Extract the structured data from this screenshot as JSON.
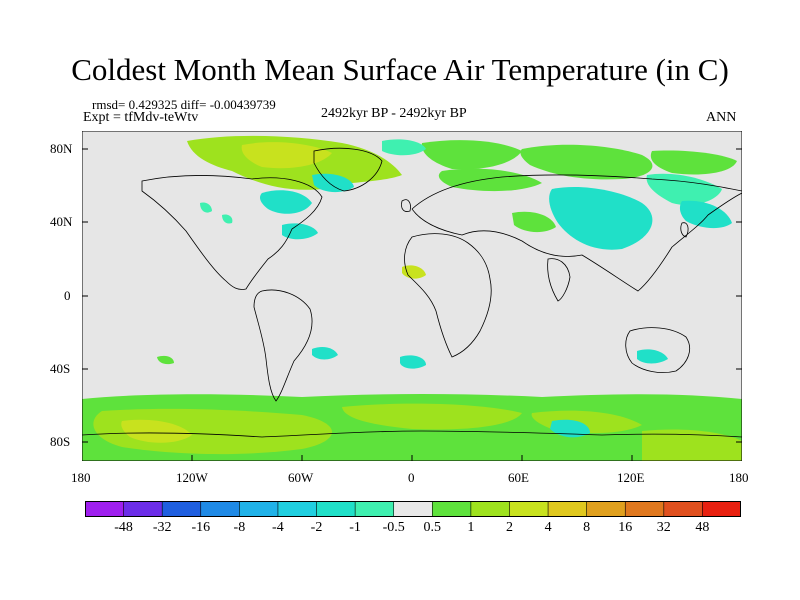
{
  "title": "Coldest Month Mean Surface Air Temperature (in C)",
  "stats": "rmsd= 0.429325 diff= -0.00439739",
  "expt": "Expt = tfMdv-teWtv",
  "period": "2492kyr BP - 2492kyr BP",
  "season": "ANN",
  "y_ticks": [
    "80N",
    "40N",
    "0",
    "40S",
    "80S"
  ],
  "x_ticks": [
    "180",
    "120W",
    "60W",
    "0",
    "60E",
    "120E",
    "180"
  ],
  "colorbar": {
    "labels": [
      "-48",
      "-32",
      "-16",
      "-8",
      "-4",
      "-2",
      "-1",
      "-0.5",
      "0.5",
      "1",
      "2",
      "4",
      "8",
      "16",
      "32",
      "48"
    ],
    "colors": [
      "#9f1fef",
      "#6c2de8",
      "#1f5fe0",
      "#1f8ae6",
      "#20b2e8",
      "#20cfe0",
      "#20e0c8",
      "#3ff0b0",
      "#e8e8e8",
      "#5ee23c",
      "#9ee21e",
      "#c8e21e",
      "#e0c81e",
      "#e0a01e",
      "#e0781e",
      "#e0501e",
      "#e82010"
    ]
  },
  "colors": {
    "background": "#e6e6e6",
    "coast": "#000000"
  }
}
